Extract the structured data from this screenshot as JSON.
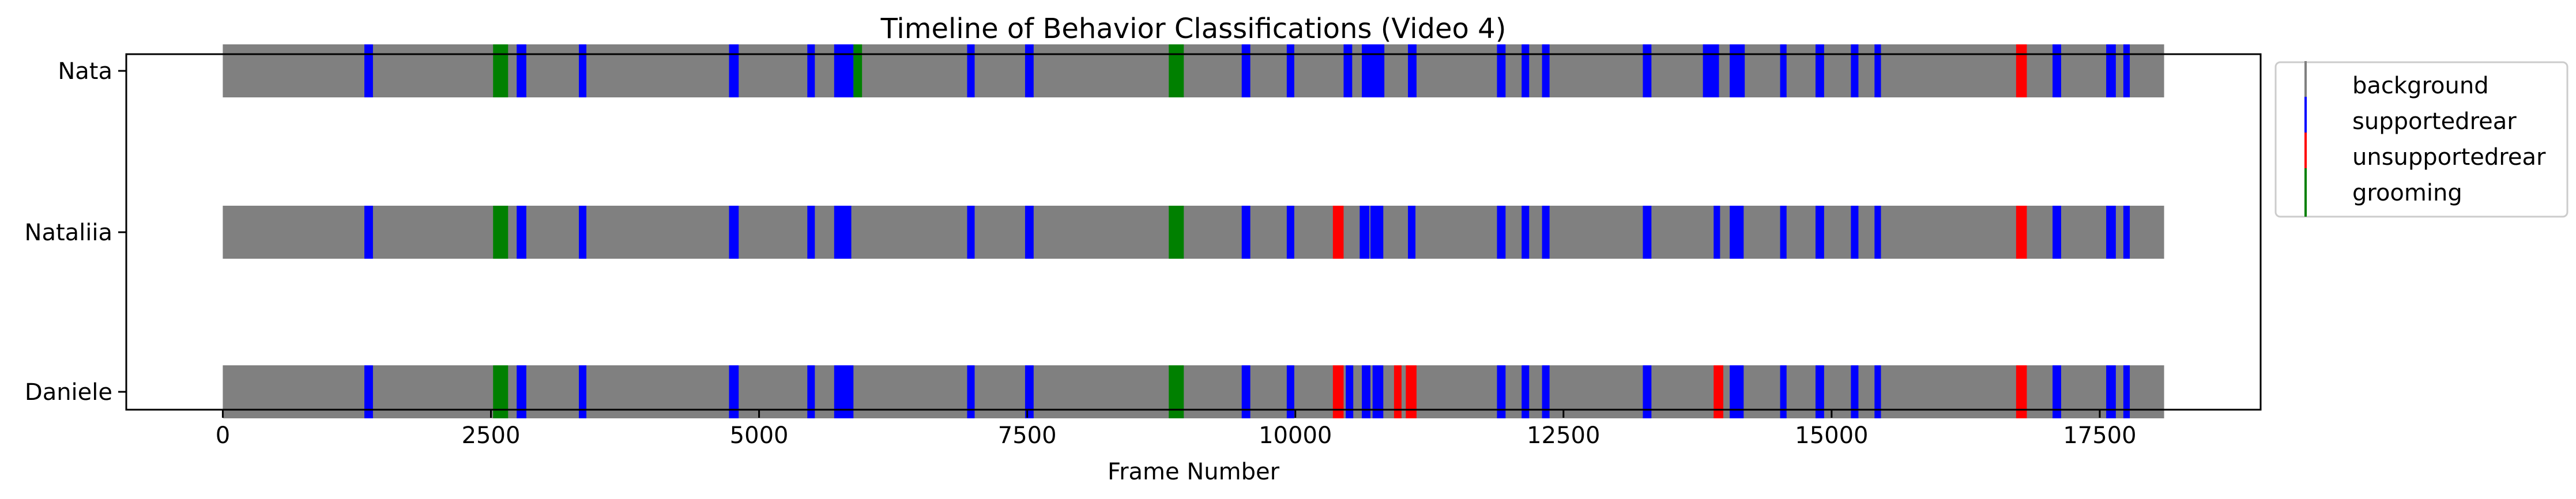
{
  "chart_data": {
    "type": "timeline",
    "title": "Timeline of Behavior Classifications (Video 4)",
    "xlabel": "Frame Number",
    "ylabel": "",
    "xlim": [
      -900,
      19000
    ],
    "x_ticks": [
      0,
      2500,
      5000,
      7500,
      10000,
      12500,
      15000,
      17500
    ],
    "frame_range": [
      0,
      18100
    ],
    "annotators": [
      "Nata",
      "Nataliia",
      "Daniele"
    ],
    "legend_position": "outside-right-top",
    "colors": {
      "background": "#808080",
      "supportedrear": "#0000ff",
      "unsupportedrear": "#ff0000",
      "grooming": "#008000"
    },
    "legend": [
      {
        "key": "background",
        "label": "background"
      },
      {
        "key": "supportedrear",
        "label": "supportedrear"
      },
      {
        "key": "unsupportedrear",
        "label": "unsupportedrear"
      },
      {
        "key": "grooming",
        "label": "grooming"
      }
    ],
    "series": [
      {
        "name": "Nata",
        "segments": [
          {
            "behavior": "supportedrear",
            "start": 1320,
            "end": 1400
          },
          {
            "behavior": "grooming",
            "start": 2520,
            "end": 2660
          },
          {
            "behavior": "supportedrear",
            "start": 2740,
            "end": 2830
          },
          {
            "behavior": "supportedrear",
            "start": 3320,
            "end": 3390
          },
          {
            "behavior": "supportedrear",
            "start": 4720,
            "end": 4810
          },
          {
            "behavior": "supportedrear",
            "start": 5450,
            "end": 5520
          },
          {
            "behavior": "supportedrear",
            "start": 5700,
            "end": 5880
          },
          {
            "behavior": "grooming",
            "start": 5880,
            "end": 5960
          },
          {
            "behavior": "supportedrear",
            "start": 6940,
            "end": 7010
          },
          {
            "behavior": "supportedrear",
            "start": 7480,
            "end": 7560
          },
          {
            "behavior": "grooming",
            "start": 8820,
            "end": 8960
          },
          {
            "behavior": "supportedrear",
            "start": 9500,
            "end": 9580
          },
          {
            "behavior": "supportedrear",
            "start": 9920,
            "end": 9990
          },
          {
            "behavior": "supportedrear",
            "start": 10450,
            "end": 10530
          },
          {
            "behavior": "supportedrear",
            "start": 10620,
            "end": 10830
          },
          {
            "behavior": "supportedrear",
            "start": 11050,
            "end": 11130
          },
          {
            "behavior": "supportedrear",
            "start": 11880,
            "end": 11960
          },
          {
            "behavior": "supportedrear",
            "start": 12110,
            "end": 12180
          },
          {
            "behavior": "supportedrear",
            "start": 12300,
            "end": 12370
          },
          {
            "behavior": "supportedrear",
            "start": 13240,
            "end": 13320
          },
          {
            "behavior": "supportedrear",
            "start": 13800,
            "end": 13950
          },
          {
            "behavior": "supportedrear",
            "start": 14050,
            "end": 14190
          },
          {
            "behavior": "supportedrear",
            "start": 14520,
            "end": 14580
          },
          {
            "behavior": "supportedrear",
            "start": 14850,
            "end": 14930
          },
          {
            "behavior": "supportedrear",
            "start": 15180,
            "end": 15250
          },
          {
            "behavior": "supportedrear",
            "start": 15400,
            "end": 15460
          },
          {
            "behavior": "unsupportedrear",
            "start": 16720,
            "end": 16820
          },
          {
            "behavior": "supportedrear",
            "start": 17060,
            "end": 17140
          },
          {
            "behavior": "supportedrear",
            "start": 17560,
            "end": 17650
          },
          {
            "behavior": "supportedrear",
            "start": 17720,
            "end": 17780
          }
        ]
      },
      {
        "name": "Nataliia",
        "segments": [
          {
            "behavior": "supportedrear",
            "start": 1320,
            "end": 1400
          },
          {
            "behavior": "grooming",
            "start": 2520,
            "end": 2660
          },
          {
            "behavior": "supportedrear",
            "start": 2740,
            "end": 2830
          },
          {
            "behavior": "supportedrear",
            "start": 3320,
            "end": 3390
          },
          {
            "behavior": "supportedrear",
            "start": 4720,
            "end": 4810
          },
          {
            "behavior": "supportedrear",
            "start": 5450,
            "end": 5520
          },
          {
            "behavior": "supportedrear",
            "start": 5700,
            "end": 5860
          },
          {
            "behavior": "supportedrear",
            "start": 6940,
            "end": 7010
          },
          {
            "behavior": "supportedrear",
            "start": 7480,
            "end": 7560
          },
          {
            "behavior": "grooming",
            "start": 8820,
            "end": 8960
          },
          {
            "behavior": "supportedrear",
            "start": 9500,
            "end": 9580
          },
          {
            "behavior": "supportedrear",
            "start": 9920,
            "end": 9990
          },
          {
            "behavior": "unsupportedrear",
            "start": 10350,
            "end": 10450
          },
          {
            "behavior": "supportedrear",
            "start": 10600,
            "end": 10690
          },
          {
            "behavior": "supportedrear",
            "start": 10700,
            "end": 10820
          },
          {
            "behavior": "supportedrear",
            "start": 11050,
            "end": 11120
          },
          {
            "behavior": "supportedrear",
            "start": 11880,
            "end": 11960
          },
          {
            "behavior": "supportedrear",
            "start": 12110,
            "end": 12180
          },
          {
            "behavior": "supportedrear",
            "start": 12300,
            "end": 12370
          },
          {
            "behavior": "supportedrear",
            "start": 13240,
            "end": 13320
          },
          {
            "behavior": "supportedrear",
            "start": 13900,
            "end": 13960
          },
          {
            "behavior": "supportedrear",
            "start": 14050,
            "end": 14180
          },
          {
            "behavior": "supportedrear",
            "start": 14520,
            "end": 14580
          },
          {
            "behavior": "supportedrear",
            "start": 14850,
            "end": 14930
          },
          {
            "behavior": "supportedrear",
            "start": 15180,
            "end": 15250
          },
          {
            "behavior": "supportedrear",
            "start": 15400,
            "end": 15460
          },
          {
            "behavior": "unsupportedrear",
            "start": 16720,
            "end": 16820
          },
          {
            "behavior": "supportedrear",
            "start": 17060,
            "end": 17140
          },
          {
            "behavior": "supportedrear",
            "start": 17560,
            "end": 17650
          },
          {
            "behavior": "supportedrear",
            "start": 17720,
            "end": 17780
          }
        ]
      },
      {
        "name": "Daniele",
        "segments": [
          {
            "behavior": "supportedrear",
            "start": 1320,
            "end": 1400
          },
          {
            "behavior": "grooming",
            "start": 2520,
            "end": 2660
          },
          {
            "behavior": "supportedrear",
            "start": 2740,
            "end": 2830
          },
          {
            "behavior": "supportedrear",
            "start": 3320,
            "end": 3390
          },
          {
            "behavior": "supportedrear",
            "start": 4720,
            "end": 4810
          },
          {
            "behavior": "supportedrear",
            "start": 5450,
            "end": 5520
          },
          {
            "behavior": "supportedrear",
            "start": 5700,
            "end": 5880
          },
          {
            "behavior": "supportedrear",
            "start": 6940,
            "end": 7010
          },
          {
            "behavior": "supportedrear",
            "start": 7480,
            "end": 7560
          },
          {
            "behavior": "grooming",
            "start": 8820,
            "end": 8960
          },
          {
            "behavior": "supportedrear",
            "start": 9500,
            "end": 9580
          },
          {
            "behavior": "supportedrear",
            "start": 9920,
            "end": 9990
          },
          {
            "behavior": "unsupportedrear",
            "start": 10350,
            "end": 10450
          },
          {
            "behavior": "supportedrear",
            "start": 10470,
            "end": 10540
          },
          {
            "behavior": "supportedrear",
            "start": 10620,
            "end": 10700
          },
          {
            "behavior": "supportedrear",
            "start": 10720,
            "end": 10820
          },
          {
            "behavior": "unsupportedrear",
            "start": 10920,
            "end": 10990
          },
          {
            "behavior": "unsupportedrear",
            "start": 11030,
            "end": 11130
          },
          {
            "behavior": "supportedrear",
            "start": 11880,
            "end": 11960
          },
          {
            "behavior": "supportedrear",
            "start": 12110,
            "end": 12180
          },
          {
            "behavior": "supportedrear",
            "start": 12300,
            "end": 12370
          },
          {
            "behavior": "supportedrear",
            "start": 13240,
            "end": 13320
          },
          {
            "behavior": "unsupportedrear",
            "start": 13900,
            "end": 13990
          },
          {
            "behavior": "supportedrear",
            "start": 14050,
            "end": 14180
          },
          {
            "behavior": "supportedrear",
            "start": 14520,
            "end": 14580
          },
          {
            "behavior": "supportedrear",
            "start": 14850,
            "end": 14930
          },
          {
            "behavior": "supportedrear",
            "start": 15180,
            "end": 15250
          },
          {
            "behavior": "supportedrear",
            "start": 15400,
            "end": 15460
          },
          {
            "behavior": "unsupportedrear",
            "start": 16720,
            "end": 16820
          },
          {
            "behavior": "supportedrear",
            "start": 17060,
            "end": 17140
          },
          {
            "behavior": "supportedrear",
            "start": 17560,
            "end": 17650
          },
          {
            "behavior": "supportedrear",
            "start": 17720,
            "end": 17780
          }
        ]
      }
    ]
  }
}
